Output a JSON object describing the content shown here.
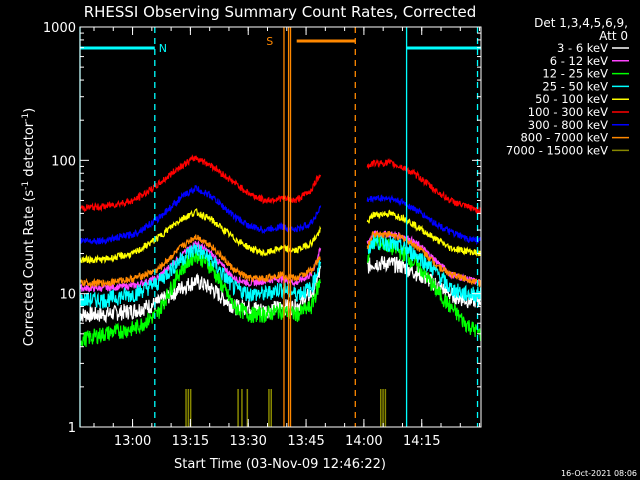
{
  "chart_data": {
    "type": "line",
    "title": "RHESSI Observing Summary Count Rates, Corrected",
    "xlabel": "Start Time (03-Nov-09 12:46:22)",
    "ylabel_parts": [
      "Corrected Count Rate (s",
      "-1",
      " detector",
      "-1",
      ")"
    ],
    "ylabel": "Corrected Count Rate (s-1 detector-1)",
    "y_scale": "log",
    "ylim": [
      1,
      1000
    ],
    "xlim_minutes_after_start": [
      0,
      104
    ],
    "x_tick_labels": [
      "13:00",
      "13:15",
      "13:30",
      "13:45",
      "14:00",
      "14:15"
    ],
    "x_tick_minutes": [
      13.63,
      28.63,
      43.63,
      58.63,
      73.63,
      88.63
    ],
    "y_tick_labels": [
      "1",
      "10",
      "100",
      "1000"
    ],
    "y_tick_values": [
      1,
      10,
      100,
      1000
    ],
    "legend_header": [
      "Det 1,3,4,5,6,9,",
      "Att 0"
    ],
    "legend_position": "right",
    "data_gap_minutes": [
      62.5,
      74.5
    ],
    "series": [
      {
        "name": "3 - 6 keV",
        "color": "#ffffff",
        "x": [
          0,
          6,
          14,
          20,
          26,
          30,
          34,
          40,
          44,
          48,
          52,
          56,
          60,
          62.5,
          74.5,
          76,
          80,
          84,
          88,
          92,
          96,
          100,
          104
        ],
        "values": [
          7,
          7,
          7.5,
          8.5,
          11,
          12.5,
          11,
          8,
          8,
          7.5,
          8,
          8,
          10,
          15,
          16,
          17,
          17,
          16,
          14,
          12,
          10,
          9,
          9
        ]
      },
      {
        "name": "6 - 12 keV",
        "color": "#ff44ff",
        "x": [
          0,
          6,
          14,
          20,
          26,
          30,
          34,
          40,
          44,
          48,
          52,
          56,
          60,
          62.5,
          74.5,
          76,
          80,
          84,
          88,
          92,
          96,
          100,
          104
        ],
        "values": [
          11,
          11,
          11.5,
          13,
          19,
          24,
          20,
          13,
          12,
          12.5,
          13,
          12,
          14,
          22,
          24,
          28,
          28,
          27,
          23,
          18,
          14,
          13,
          12
        ]
      },
      {
        "name": "12 - 25 keV",
        "color": "#00ff00",
        "x": [
          0,
          6,
          14,
          20,
          26,
          30,
          34,
          40,
          44,
          48,
          52,
          56,
          60,
          62.5,
          74.5,
          76,
          80,
          84,
          88,
          92,
          96,
          100,
          104
        ],
        "values": [
          4.5,
          5,
          5.5,
          7,
          15,
          20,
          16,
          8,
          7,
          7,
          7.5,
          7,
          8,
          13,
          18,
          25,
          23,
          20,
          16,
          11,
          8,
          6,
          5
        ]
      },
      {
        "name": "25 - 50 keV",
        "color": "#00ffff",
        "x": [
          0,
          6,
          14,
          20,
          26,
          30,
          34,
          40,
          44,
          48,
          52,
          56,
          60,
          62.5,
          74.5,
          76,
          80,
          84,
          88,
          92,
          96,
          100,
          104
        ],
        "values": [
          9,
          9,
          10,
          12,
          18,
          22,
          18,
          11,
          10,
          10,
          11,
          10,
          11,
          18,
          20,
          25,
          24,
          22,
          19,
          15,
          11,
          10,
          10
        ]
      },
      {
        "name": "50 - 100 keV",
        "color": "#ffff00",
        "x": [
          0,
          6,
          14,
          20,
          26,
          30,
          34,
          40,
          44,
          48,
          52,
          56,
          60,
          62.5,
          74.5,
          76,
          80,
          84,
          88,
          92,
          96,
          100,
          104
        ],
        "values": [
          18,
          18,
          20,
          26,
          36,
          41,
          36,
          26,
          22,
          20,
          22,
          21,
          24,
          30,
          34,
          39,
          40,
          37,
          31,
          26,
          22,
          21,
          20
        ]
      },
      {
        "name": "100 - 300 keV",
        "color": "#ff0000",
        "x": [
          0,
          6,
          14,
          20,
          26,
          30,
          34,
          40,
          44,
          48,
          52,
          56,
          60,
          62.5,
          74.5,
          76,
          80,
          84,
          88,
          92,
          96,
          100,
          104
        ],
        "values": [
          44,
          45,
          50,
          65,
          90,
          105,
          92,
          68,
          56,
          50,
          52,
          50,
          60,
          82,
          90,
          95,
          96,
          88,
          75,
          60,
          50,
          45,
          42
        ]
      },
      {
        "name": "300 - 800 keV",
        "color": "#0000ff",
        "x": [
          0,
          6,
          14,
          20,
          26,
          30,
          34,
          40,
          44,
          48,
          52,
          56,
          60,
          62.5,
          74.5,
          76,
          80,
          84,
          88,
          92,
          96,
          100,
          104
        ],
        "values": [
          25,
          25,
          28,
          36,
          52,
          62,
          54,
          38,
          32,
          30,
          32,
          30,
          34,
          45,
          50,
          52,
          52,
          48,
          41,
          34,
          29,
          26,
          25
        ]
      },
      {
        "name": "800 - 7000 keV",
        "color": "#ff8800",
        "x": [
          0,
          6,
          14,
          20,
          26,
          30,
          34,
          40,
          44,
          48,
          52,
          56,
          60,
          62.5,
          74.5,
          76,
          80,
          84,
          88,
          92,
          96,
          100,
          104
        ],
        "values": [
          12,
          12,
          13,
          15,
          22,
          27,
          23,
          15,
          13,
          13,
          14,
          13,
          15,
          19,
          22,
          28,
          28,
          26,
          22,
          17,
          14,
          13,
          12
        ]
      },
      {
        "name": "7000 - 15000 keV",
        "color": "#888800",
        "x": [
          0,
          6,
          14,
          20,
          26,
          30,
          34,
          40,
          44,
          48,
          52,
          56,
          60,
          62.5,
          74.5,
          76,
          80,
          84,
          88,
          92,
          96,
          100,
          104
        ],
        "values": [
          1,
          1,
          1,
          1,
          1,
          1,
          1,
          1,
          1,
          1,
          1,
          1,
          1,
          1,
          1,
          1,
          1,
          1,
          1,
          1,
          1,
          1,
          1
        ]
      }
    ],
    "flag_bars": [
      {
        "label": "N",
        "color": "#00ffff",
        "segments": [
          [
            0,
            19.4
          ],
          [
            84.7,
            104
          ]
        ]
      },
      {
        "label": "S",
        "color": "#ff8800",
        "segments": [
          [
            56.2,
            71.4
          ]
        ]
      }
    ],
    "vertical_markers": [
      {
        "color": "#00ffff",
        "style": "dashed",
        "x": 19.4
      },
      {
        "color": "#00ffff",
        "style": "solid",
        "x": 84.7
      },
      {
        "color": "#00ffff",
        "style": "dashed",
        "x": 103.1
      },
      {
        "color": "#00ffff",
        "style": "solid",
        "x": 0
      },
      {
        "color": "#ff8800",
        "style": "solid",
        "x": 52.9
      },
      {
        "color": "#ff8800",
        "style": "solid",
        "x": 54.1
      },
      {
        "color": "#ff8800",
        "style": "solid",
        "x": 54.6
      },
      {
        "color": "#ff8800",
        "style": "dashed",
        "x": 71.4
      }
    ],
    "spikes_7000_15000": [
      27.5,
      28.1,
      28.7,
      41.0,
      42.0,
      43.4,
      49.0,
      49.6,
      78.0,
      78.6,
      79.2
    ]
  },
  "timestamp": "16-Oct-2021 08:06"
}
